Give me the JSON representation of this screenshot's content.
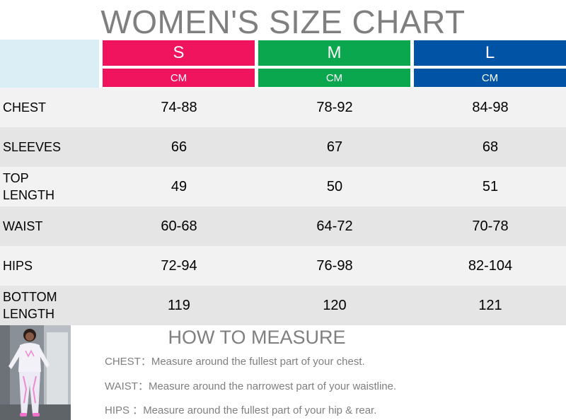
{
  "title": "WOMEN'S SIZE CHART",
  "sizes": [
    {
      "label": "S",
      "unit": "CM",
      "color": "#f0135d"
    },
    {
      "label": "M",
      "unit": "CM",
      "color": "#0aa74e"
    },
    {
      "label": "L",
      "unit": "CM",
      "color": "#0153a6"
    }
  ],
  "rows": [
    {
      "label": "CHEST",
      "values": [
        "74-88",
        "78-92",
        "84-98"
      ]
    },
    {
      "label": "SLEEVES",
      "values": [
        "66",
        "67",
        "68"
      ]
    },
    {
      "label": "TOP LENGTH",
      "values": [
        "49",
        "50",
        "51"
      ]
    },
    {
      "label": "WAIST",
      "values": [
        "60-68",
        "64-72",
        "70-78"
      ]
    },
    {
      "label": "HIPS",
      "values": [
        "72-94",
        "76-98",
        "82-104"
      ]
    },
    {
      "label": "BOTTOM LENGTH",
      "values": [
        "119",
        "120",
        "121"
      ]
    }
  ],
  "how_to_measure": {
    "title": "HOW TO MEASURE",
    "items": [
      {
        "key": "CHEST：",
        "text": "Measure around the fullest part of your chest."
      },
      {
        "key": "WAIST：",
        "text": "Measure around the narrowest part of your waistline."
      },
      {
        "key": "HIPS ：",
        "text": "Measure around the fullest part of your hip & rear."
      }
    ]
  },
  "colors": {
    "title_gray": "#7f7f7f",
    "row_light": "#f2f2f2",
    "row_dark": "#e5e5e5",
    "corner": "#dbeef6"
  }
}
